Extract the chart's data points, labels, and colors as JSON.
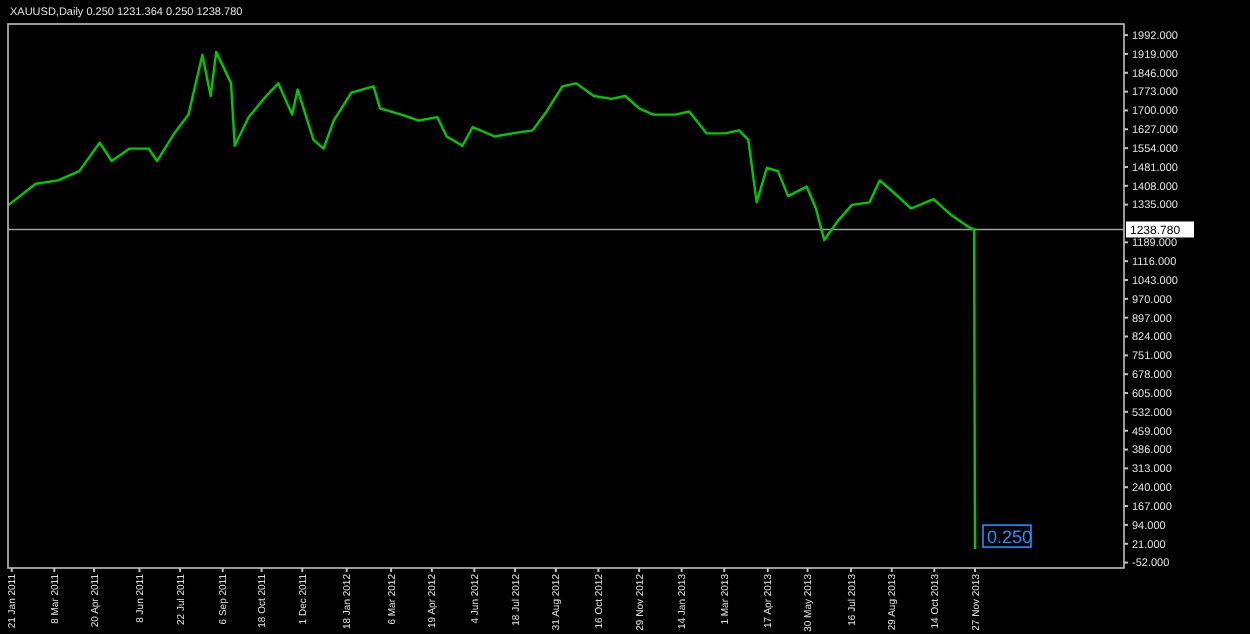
{
  "chart_data": {
    "type": "line",
    "title": "XAUUSD,Daily  0.250 1231.364 0.250 1238.780",
    "x": [
      "2011-01-17",
      "2011-02-16",
      "2011-03-12",
      "2011-04-04",
      "2011-04-26",
      "2011-05-09",
      "2011-05-28",
      "2011-06-18",
      "2011-06-27",
      "2011-07-16",
      "2011-07-31",
      "2011-08-15",
      "2011-08-24",
      "2011-08-30",
      "2011-09-15",
      "2011-09-19",
      "2011-10-04",
      "2011-10-23",
      "2011-11-05",
      "2011-11-20",
      "2011-11-26",
      "2011-12-13",
      "2011-12-24",
      "2012-01-04",
      "2012-01-23",
      "2012-02-16",
      "2012-02-23",
      "2012-03-17",
      "2012-04-05",
      "2012-04-25",
      "2012-05-05",
      "2012-05-22",
      "2012-06-02",
      "2012-06-26",
      "2012-07-15",
      "2012-08-06",
      "2012-08-21",
      "2012-09-07",
      "2012-09-22",
      "2012-10-11",
      "2012-10-30",
      "2012-11-14",
      "2012-11-29",
      "2012-12-14",
      "2013-01-07",
      "2013-01-22",
      "2013-02-10",
      "2013-03-02",
      "2013-03-17",
      "2013-03-27",
      "2013-04-05",
      "2013-04-16",
      "2013-04-28",
      "2013-05-09",
      "2013-05-29",
      "2013-06-08",
      "2013-06-17",
      "2013-07-02",
      "2013-07-17",
      "2013-08-05",
      "2013-08-16",
      "2013-08-31",
      "2013-09-19",
      "2013-10-13",
      "2013-11-01",
      "2013-11-21",
      "2013-11-26",
      "2013-11-27"
    ],
    "series": [
      {
        "color": "#00c800",
        "values": [
          1332,
          1416,
          1429,
          1465,
          1575,
          1504,
          1552,
          1552,
          1504,
          1613,
          1684,
          1915,
          1756,
          1927,
          1805,
          1563,
          1674,
          1756,
          1805,
          1684,
          1781,
          1586,
          1552,
          1661,
          1769,
          1793,
          1708,
          1684,
          1661,
          1674,
          1599,
          1563,
          1635,
          1599,
          1611,
          1623,
          1696,
          1793,
          1805,
          1756,
          1745,
          1756,
          1708,
          1684,
          1684,
          1696,
          1611,
          1611,
          1623,
          1586,
          1344,
          1477,
          1465,
          1368,
          1405,
          1320,
          1198,
          1273,
          1334,
          1344,
          1429,
          1382,
          1320,
          1356,
          1295,
          1246,
          1239,
          0.25
        ]
      }
    ],
    "xlim": [
      "2011-01-17",
      "2014-05-07"
    ],
    "xticks": [
      {
        "value": "2011-01-21",
        "label": "21 Jan 2011"
      },
      {
        "value": "2011-03-08",
        "label": "8 Mar 2011"
      },
      {
        "value": "2011-04-20",
        "label": "20 Apr 2011"
      },
      {
        "value": "2011-06-08",
        "label": "8 Jun 2011"
      },
      {
        "value": "2011-07-22",
        "label": "22 Jul 2011"
      },
      {
        "value": "2011-09-06",
        "label": "6 Sep 2011"
      },
      {
        "value": "2011-10-18",
        "label": "18 Oct 2011"
      },
      {
        "value": "2011-12-01",
        "label": "1 Dec 2011"
      },
      {
        "value": "2012-01-18",
        "label": "18 Jan 2012"
      },
      {
        "value": "2012-03-06",
        "label": "6 Mar 2012"
      },
      {
        "value": "2012-04-19",
        "label": "19 Apr 2012"
      },
      {
        "value": "2012-06-04",
        "label": "4 Jun 2012"
      },
      {
        "value": "2012-07-18",
        "label": "18 Jul 2012"
      },
      {
        "value": "2012-08-31",
        "label": "31 Aug 2012"
      },
      {
        "value": "2012-10-16",
        "label": "16 Oct 2012"
      },
      {
        "value": "2012-11-29",
        "label": "29 Nov 2012"
      },
      {
        "value": "2013-01-14",
        "label": "14 Jan 2013"
      },
      {
        "value": "2013-03-01",
        "label": "1 Mar 2013"
      },
      {
        "value": "2013-04-17",
        "label": "17 Apr 2013"
      },
      {
        "value": "2013-05-30",
        "label": "30 May 2013"
      },
      {
        "value": "2013-07-16",
        "label": "16 Jul 2013"
      },
      {
        "value": "2013-08-29",
        "label": "29 Aug 2013"
      },
      {
        "value": "2013-10-14",
        "label": "14 Oct 2013"
      },
      {
        "value": "2013-11-27",
        "label": "27 Nov 2013"
      }
    ],
    "ylim": [
      -73,
      2035
    ],
    "yticks": [
      {
        "value": -52,
        "label": "-52.000"
      },
      {
        "value": 21,
        "label": "21.000"
      },
      {
        "value": 94,
        "label": "94.000"
      },
      {
        "value": 167,
        "label": "167.000"
      },
      {
        "value": 240,
        "label": "240.000"
      },
      {
        "value": 313,
        "label": "313.000"
      },
      {
        "value": 386,
        "label": "386.000"
      },
      {
        "value": 459,
        "label": "459.000"
      },
      {
        "value": 532,
        "label": "532.000"
      },
      {
        "value": 605,
        "label": "605.000"
      },
      {
        "value": 678,
        "label": "678.000"
      },
      {
        "value": 751,
        "label": "751.000"
      },
      {
        "value": 824,
        "label": "824.000"
      },
      {
        "value": 897,
        "label": "897.000"
      },
      {
        "value": 970,
        "label": "970.000"
      },
      {
        "value": 1043,
        "label": "1043.000"
      },
      {
        "value": 1116,
        "label": "1116.000"
      },
      {
        "value": 1189,
        "label": "1189.000"
      },
      {
        "value": 1335,
        "label": "1335.000"
      },
      {
        "value": 1408,
        "label": "1408.000"
      },
      {
        "value": 1481,
        "label": "1481.000"
      },
      {
        "value": 1554,
        "label": "1554.000"
      },
      {
        "value": 1627,
        "label": "1627.000"
      },
      {
        "value": 1700,
        "label": "1700.000"
      },
      {
        "value": 1773,
        "label": "1773.000"
      },
      {
        "value": 1846,
        "label": "1846.000"
      },
      {
        "value": 1919,
        "label": "1919.000"
      },
      {
        "value": 1992,
        "label": "1992.000"
      }
    ],
    "ref_lines": [
      {
        "axis": "y",
        "value": 1238.78,
        "label": "1238.780",
        "color": "#a0a0a0"
      }
    ],
    "annotations": [
      {
        "text": "0.250",
        "x": "2013-11-27",
        "y": 0.25
      }
    ],
    "marker": "none",
    "line_style": "solid",
    "grid": false
  }
}
